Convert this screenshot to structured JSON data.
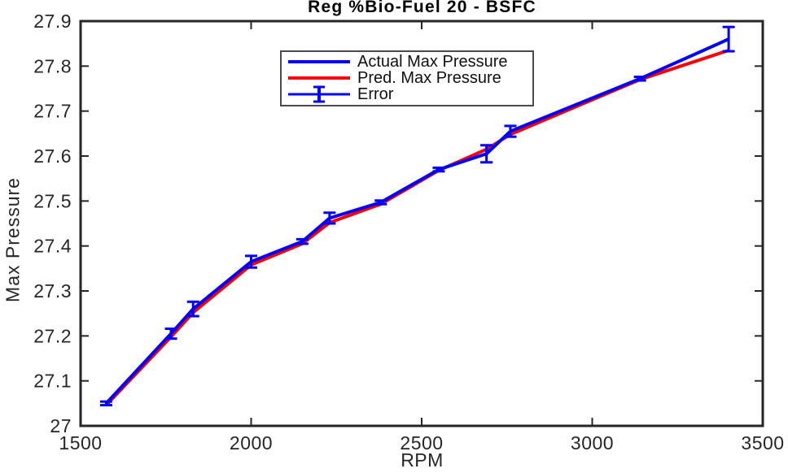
{
  "figure": {
    "background": "#ffffff"
  },
  "chart_data": {
    "type": "line",
    "title": "Reg %Bio-Fuel 20 - BSFC",
    "xlabel": "RPM",
    "ylabel": "Max Pressure",
    "xlim": [
      1500,
      3500
    ],
    "ylim": [
      27,
      27.9
    ],
    "x_ticks": [
      1500,
      2000,
      2500,
      3000,
      3500
    ],
    "x_tick_labels": [
      "1500",
      "2000",
      "2500",
      "3000",
      "3500"
    ],
    "y_ticks": [
      27,
      27.1,
      27.2,
      27.3,
      27.4,
      27.5,
      27.6,
      27.7,
      27.8,
      27.9
    ],
    "y_tick_labels": [
      "27",
      "27.1",
      "27.2",
      "27.3",
      "27.4",
      "27.5",
      "27.6",
      "27.7",
      "27.8",
      "27.9"
    ],
    "grid": false,
    "box": true,
    "axis_color": "#262626",
    "legend_position": "upper-left-inside",
    "x": [
      1575,
      1765,
      1830,
      2000,
      2150,
      2230,
      2380,
      2550,
      2690,
      2760,
      3140,
      3400
    ],
    "series": [
      {
        "name": "Actual Max Pressure",
        "color": "#0000fd",
        "style": "solid",
        "values": [
          27.05,
          27.205,
          27.26,
          27.365,
          27.41,
          27.462,
          27.497,
          27.57,
          27.605,
          27.655,
          27.772,
          27.86
        ]
      },
      {
        "name": "Pred. Max Pressure",
        "color": "#fc0000",
        "style": "solid",
        "values": [
          27.046,
          27.198,
          27.252,
          27.358,
          27.405,
          27.452,
          27.493,
          27.568,
          27.615,
          27.648,
          27.77,
          27.835
        ]
      },
      {
        "name": "Error",
        "color": "#0000fd",
        "style": "errorbar",
        "centered_on": "Actual Max Pressure",
        "values": [
          0.004,
          0.011,
          0.016,
          0.013,
          0.005,
          0.012,
          0.004,
          0.004,
          0.019,
          0.012,
          0.004,
          0.027
        ]
      }
    ]
  }
}
